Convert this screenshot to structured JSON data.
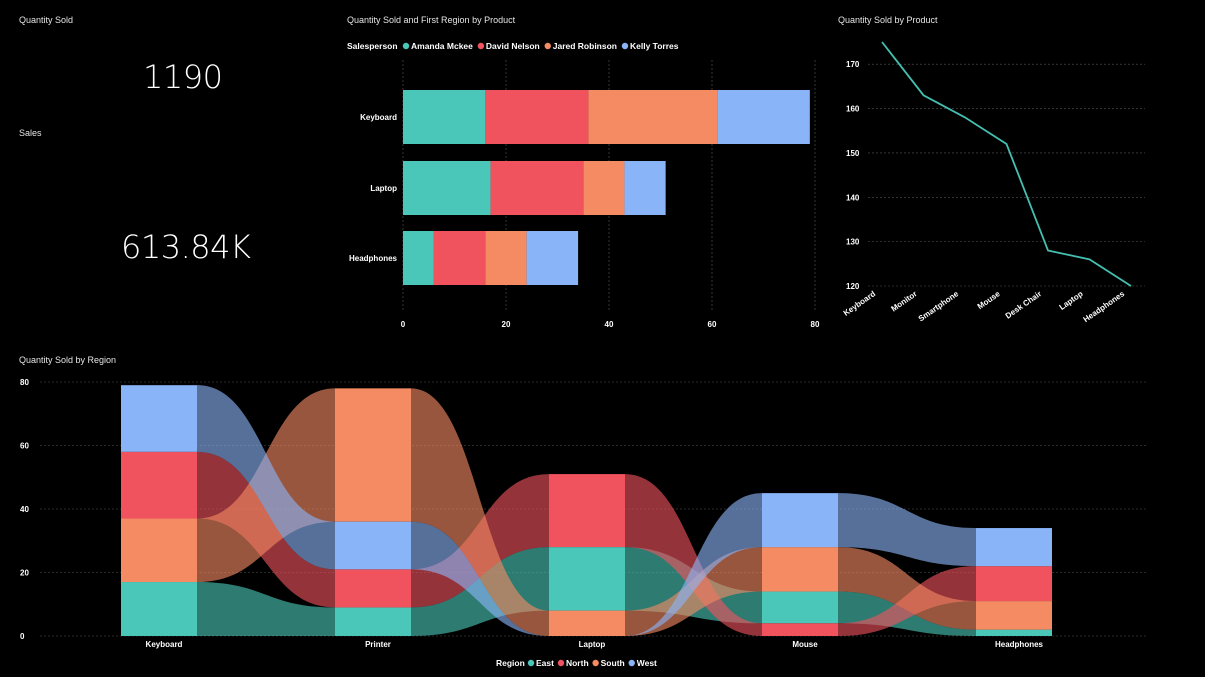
{
  "cards": {
    "quantity_title": "Quantity Sold",
    "quantity_value": "1190",
    "sales_title": "Sales",
    "sales_value": "613.84K"
  },
  "colors": {
    "teal": "#4ac7b8",
    "red": "#f0525e",
    "orange": "#f48b63",
    "blue": "#8ab4f8",
    "line": "#44bfb0"
  },
  "chart_data": [
    {
      "type": "bar",
      "orientation": "horizontal",
      "stacked": true,
      "title": "Quantity Sold and First Region by Product",
      "legend_title": "Salesperson",
      "legend_position": "top-left",
      "categories": [
        "Keyboard",
        "Laptop",
        "Headphones"
      ],
      "series": [
        {
          "name": "Amanda Mckee",
          "color": "#4ac7b8",
          "values": [
            16,
            17,
            6
          ]
        },
        {
          "name": "David Nelson",
          "color": "#f0525e",
          "values": [
            20,
            18,
            10
          ]
        },
        {
          "name": "Jared Robinson",
          "color": "#f48b63",
          "values": [
            25,
            8,
            8
          ]
        },
        {
          "name": "Kelly Torres",
          "color": "#8ab4f8",
          "values": [
            18,
            8,
            10
          ]
        }
      ],
      "xlim": [
        0,
        80
      ],
      "xticks": [
        "0",
        "20",
        "40",
        "60",
        "80"
      ],
      "grid": true
    },
    {
      "type": "line",
      "title": "Quantity Sold by Product",
      "categories": [
        "Keyboard",
        "Monitor",
        "Smartphone",
        "Mouse",
        "Desk Chair",
        "Laptop",
        "Headphones"
      ],
      "values": [
        175,
        163,
        158,
        152,
        128,
        126,
        120
      ],
      "ylim": [
        120,
        175
      ],
      "yticks": [
        "120",
        "130",
        "140",
        "150",
        "160",
        "170"
      ],
      "grid": true
    },
    {
      "type": "area",
      "subtype": "ribbon",
      "title": "Quantity Sold by Region",
      "legend_title": "Region",
      "legend_position": "bottom-center",
      "categories": [
        "Keyboard",
        "Printer",
        "Laptop",
        "Mouse",
        "Headphones"
      ],
      "series": [
        {
          "name": "East",
          "color": "#4ac7b8",
          "values": [
            17,
            9,
            20,
            10,
            2
          ]
        },
        {
          "name": "North",
          "color": "#f0525e",
          "values": [
            21,
            12,
            23,
            4,
            11
          ]
        },
        {
          "name": "South",
          "color": "#f48b63",
          "values": [
            20,
            42,
            8,
            14,
            9
          ]
        },
        {
          "name": "West",
          "color": "#8ab4f8",
          "values": [
            21,
            15,
            0,
            17,
            12
          ]
        }
      ],
      "ylim": [
        0,
        80
      ],
      "yticks": [
        "0",
        "20",
        "40",
        "60",
        "80"
      ],
      "grid": true
    }
  ]
}
